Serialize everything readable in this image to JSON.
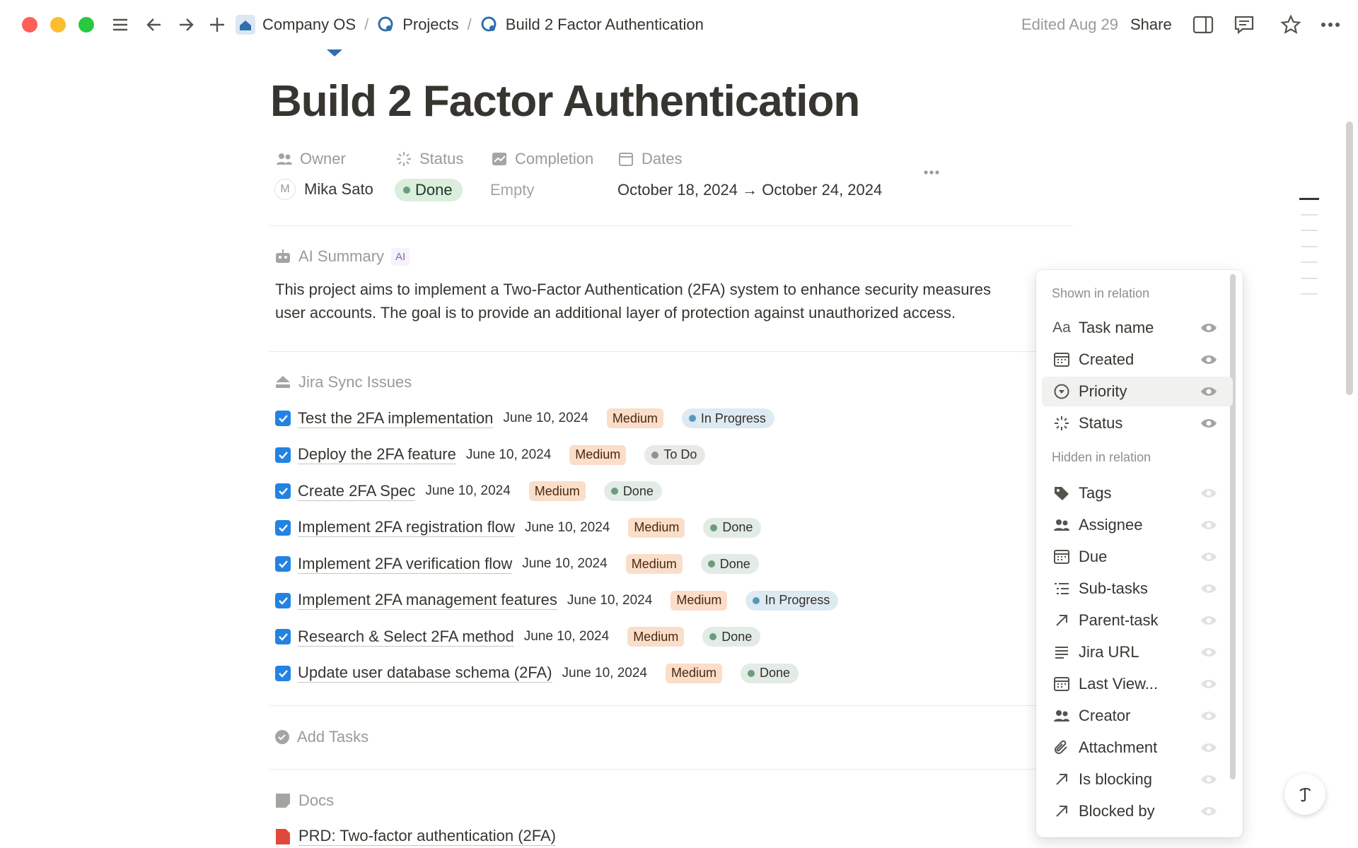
{
  "toolbar": {
    "breadcrumbs": [
      "Company OS",
      "Projects",
      "Build 2 Factor Authentication"
    ],
    "separator": "/",
    "edited": "Edited Aug 29",
    "share": "Share"
  },
  "page": {
    "title": "Build 2 Factor Authentication",
    "properties": [
      {
        "label": "Owner",
        "value": "Mika Sato",
        "avatar": "M"
      },
      {
        "label": "Status",
        "value": "Done"
      },
      {
        "label": "Completion",
        "value": "Empty"
      },
      {
        "label": "Dates",
        "value": "October 18, 2024 → October 24, 2024"
      }
    ],
    "ai_summary": {
      "label": "AI Summary",
      "badge": "AI",
      "lines": [
        "This project aims to implement a Two-Factor Authentication (2FA) system to enhance security measures",
        "user accounts. The goal is to provide an additional layer of protection against unauthorized access."
      ]
    },
    "jira": {
      "label": "Jira Sync Issues",
      "rows": [
        {
          "name": "Test the 2FA implementation",
          "date": "June 10, 2024",
          "priority": "Medium",
          "status": "In Progress",
          "status_color": "#5b97bd"
        },
        {
          "name": "Deploy the 2FA feature",
          "date": "June 10, 2024",
          "priority": "Medium",
          "status": "To Do",
          "status_color": "#91918e"
        },
        {
          "name": "Create 2FA Spec",
          "date": "June 10, 2024",
          "priority": "Medium",
          "status": "Done",
          "status_color": "#6c9b7d"
        },
        {
          "name": "Implement 2FA registration flow",
          "date": "June 10, 2024",
          "priority": "Medium",
          "status": "Done",
          "status_color": "#6c9b7d"
        },
        {
          "name": "Implement 2FA verification flow",
          "date": "June 10, 2024",
          "priority": "Medium",
          "status": "Done",
          "status_color": "#6c9b7d"
        },
        {
          "name": "Implement 2FA management features",
          "date": "June 10, 2024",
          "priority": "Medium",
          "status": "In Progress",
          "status_color": "#5b97bd"
        },
        {
          "name": "Research & Select 2FA method",
          "date": "June 10, 2024",
          "priority": "Medium",
          "status": "Done",
          "status_color": "#6c9b7d"
        },
        {
          "name": "Update user database schema (2FA)",
          "date": "June 10, 2024",
          "priority": "Medium",
          "status": "Done",
          "status_color": "#6c9b7d"
        }
      ]
    },
    "add_tasks": "Add Tasks",
    "docs": {
      "label": "Docs",
      "items": [
        "PRD: Two-factor authentication (2FA)"
      ]
    }
  },
  "menu": {
    "shown_heading": "Shown in relation",
    "shown": [
      {
        "label": "Task name",
        "icon": "Aa"
      },
      {
        "label": "Created"
      },
      {
        "label": "Priority"
      },
      {
        "label": "Status"
      }
    ],
    "hidden_heading": "Hidden in relation",
    "hidden": [
      "Tags",
      "Assignee",
      "Due",
      "Sub-tasks",
      "Parent-task",
      "Jira URL",
      "Last View...",
      "Creator",
      "Attachment",
      "Is blocking",
      "Blocked by"
    ]
  }
}
